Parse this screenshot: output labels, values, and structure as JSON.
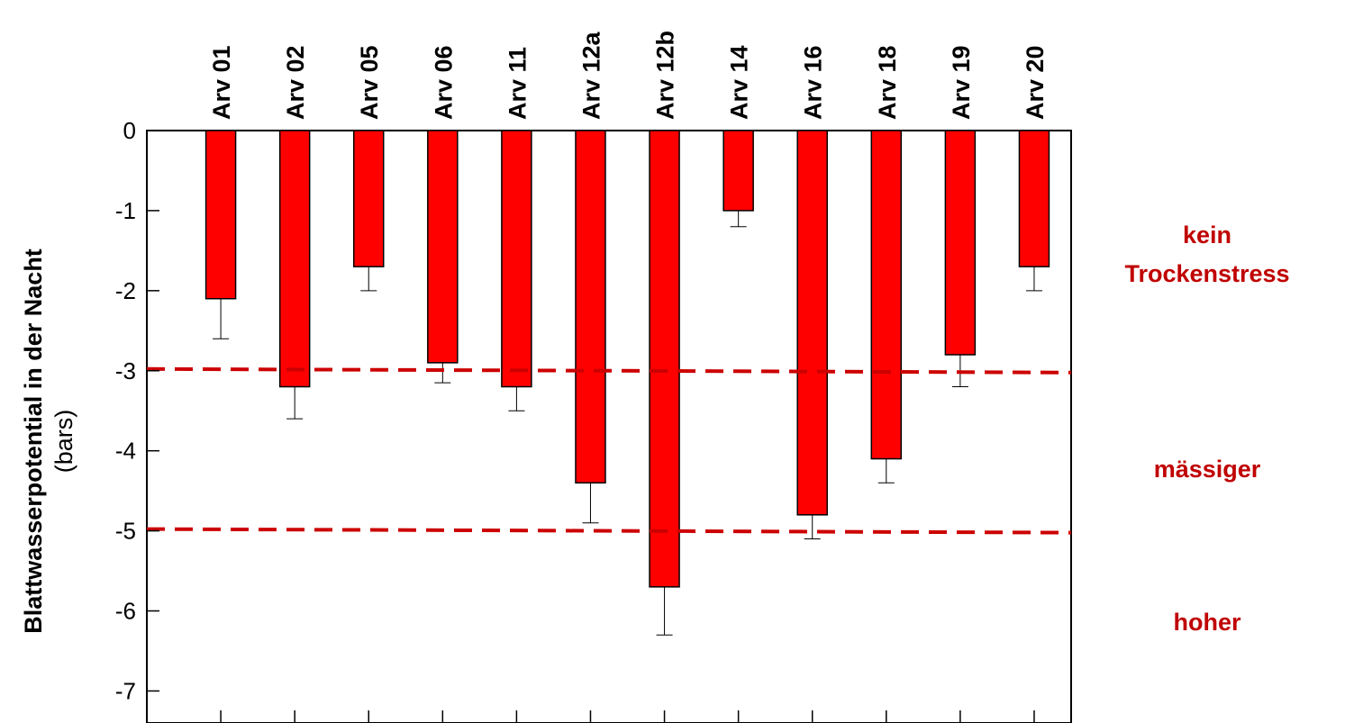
{
  "chart_data": {
    "type": "bar",
    "categories": [
      "Arv 01",
      "Arv 02",
      "Arv 05",
      "Arv 06",
      "Arv 11",
      "Arv 12a",
      "Arv 12b",
      "Arv 14",
      "Arv 16",
      "Arv 18",
      "Arv 19",
      "Arv 20"
    ],
    "values": [
      -2.1,
      -3.2,
      -1.7,
      -2.9,
      -3.2,
      -4.4,
      -5.7,
      -1.0,
      -4.8,
      -4.1,
      -2.8,
      -1.7
    ],
    "error": [
      0.5,
      0.4,
      0.3,
      0.25,
      0.3,
      0.5,
      0.6,
      0.2,
      0.3,
      0.3,
      0.4,
      0.3
    ],
    "ylabel": "Blattwasserpotential in der Nacht",
    "ylabel_unit": "(bars)",
    "ylim": [
      -7.4,
      0
    ],
    "yticks": [
      "0",
      "-1",
      "-2",
      "-3",
      "-4",
      "-5",
      "-6",
      "-7"
    ],
    "threshold_lines": [
      -3,
      -5
    ],
    "zones": [
      {
        "lines": [
          "kein",
          "Trockenstress"
        ]
      },
      {
        "lines": [
          "mässiger"
        ]
      },
      {
        "lines": [
          "hoher"
        ]
      }
    ],
    "grid": false,
    "colors": {
      "bar": "#ff0000",
      "threshold": "#cc0000",
      "zone_text": "#c00000",
      "axis": "#000000"
    }
  }
}
